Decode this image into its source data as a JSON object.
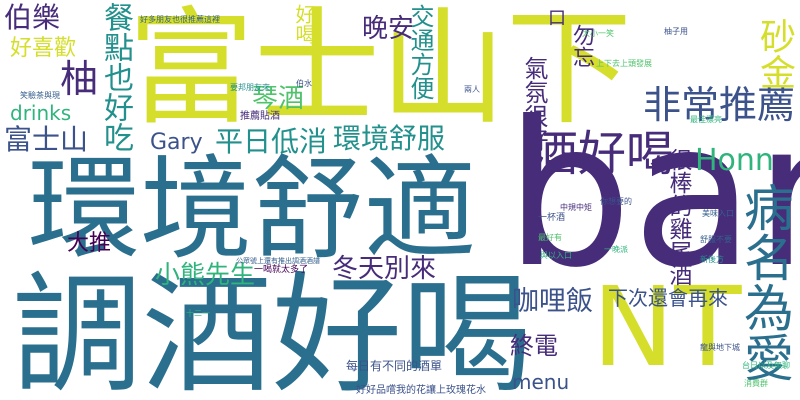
{
  "palette": {
    "yellow": "#d5df2b",
    "yellow_green": "#a4d33e",
    "green": "#4ec36b",
    "teal_green": "#2fb47c",
    "teal": "#22908c",
    "blue_teal": "#2b6f8e",
    "blue": "#355f8d",
    "indigo": "#3b528b",
    "purple": "#472c7a",
    "dark_purple": "#440154"
  },
  "words": {
    "bar": "bar",
    "fuji_shanxia": "富士山下",
    "huanjing_shushi": "環境舒適",
    "tiaojiu_haohe": "調酒好喝",
    "nt": "NT",
    "jiu_haohe": "酒好喝",
    "feichang_tuijian": "非常推薦",
    "honn": "Honn",
    "bingming_weiai": "病名為愛",
    "gary": "Gary",
    "pingri_dixiao": "平日低消",
    "huanjing_shufu": "環境舒服",
    "canyin_yehaochi": "餐點也好吃",
    "you": "柚",
    "fujisan": "富士山",
    "hao_xihuan": "好喜歡",
    "bole": "伯樂",
    "drinks": "drinks",
    "dongtian_bielai": "冬天別來",
    "xiaoxiong_xiansheng": "小熊先生",
    "galifan": "咖哩飯",
    "xiaci_huanzailai": "下次還會再來",
    "hen_bang_jiweijiu": "很棒的雞尾酒",
    "zhongdian": "終電",
    "menu": "menu",
    "da_tui": "大推",
    "qinjiu": "琴酒",
    "wanan": "晚安",
    "jiaotong_fangbian": "交通方便",
    "qifen_henhao": "氣氛很好",
    "shajin": "砂金",
    "wuwang": "勿忘",
    "hao_he": "好喝",
    "kou": "口",
    "yibei_jiu": "一杯酒",
    "tuijian_tiexie": "推薦貼酒",
    "meiri_butong": "每日有不同的酒單",
    "haohao_pinchang": "好好品嚐我的花讓上玫瑰花水",
    "yihe_jiutai": "一喝就太多了",
    "gongzhong_hao": "公眾號上還有推出調酒酒譜",
    "haoduo_pengyou": "好多朋友也很推薦這裡",
    "yaobang_pengyou": "要邦朋友來",
    "mei_ru_kou": "美味入口",
    "youzi_yong": "柚子用",
    "daxiao_yixiao": "大小一笑",
    "shangxia_zhuji": "上下去上頭發展",
    "shu_fu_bu_yao": "舒服不要",
    "yi_wan_pai": "一晚派",
    "zuihao_you": "最好有",
    "yuyuan_qiu_dao": "與以入口",
    "xiao_yang_cha": "笑驗茶與現",
    "shi_er_yi": "十二一",
    "bo_shui": "伯水",
    "tai_ri": "台日以及無聊",
    "long_yu": "龍與地下城",
    "xin_hou": "新後方",
    "ni_xiang_yao": "你想要的",
    "xiaofei_qun": "消費群",
    "zuijia_piaoliang": "最佳漂亮",
    "zhongli_gou": "中規中矩",
    "liang_ren": "兩人"
  }
}
